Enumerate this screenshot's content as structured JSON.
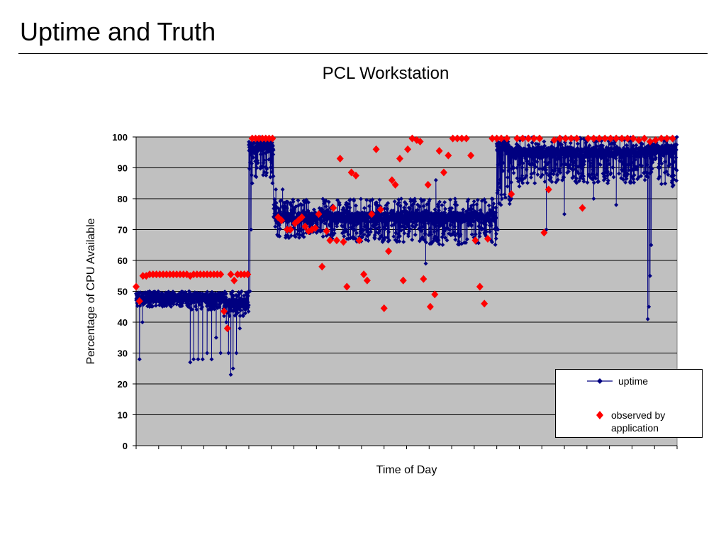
{
  "slide": {
    "title": "Uptime and Truth"
  },
  "chart_data": {
    "type": "scatter",
    "title": "PCL Workstation",
    "xlabel": "Time of Day",
    "ylabel": "Percentage of CPU Available",
    "ylim": [
      0,
      100
    ],
    "yticks": [
      0,
      10,
      20,
      30,
      40,
      50,
      60,
      70,
      80,
      90,
      100
    ],
    "xlim": [
      0,
      24
    ],
    "xtick_count": 24,
    "grid": "horizontal",
    "legend_position": "bottom-right",
    "plot_background": "#c0c0c0",
    "series": [
      {
        "name": "uptime",
        "color": "#000080",
        "marker": "diamond-line",
        "segments": [
          {
            "x0": 0.0,
            "x1": 2.4,
            "base": 48,
            "band": [
              45,
              50
            ],
            "spikes": [
              [
                0.15,
                28
              ],
              [
                0.28,
                40
              ],
              [
                0.6,
                45
              ]
            ]
          },
          {
            "x0": 2.4,
            "x1": 4.0,
            "base": 48,
            "band": [
              44,
              50
            ],
            "spikes": [
              [
                2.4,
                27
              ],
              [
                2.55,
                28
              ],
              [
                2.75,
                28
              ],
              [
                2.95,
                28
              ],
              [
                3.15,
                30
              ],
              [
                3.35,
                28
              ],
              [
                3.55,
                35
              ],
              [
                3.75,
                30
              ],
              [
                3.9,
                42
              ]
            ]
          },
          {
            "x0": 4.0,
            "x1": 5.0,
            "base": 46,
            "band": [
              42,
              50
            ],
            "spikes": [
              [
                4.0,
                40
              ],
              [
                4.1,
                30
              ],
              [
                4.2,
                23
              ],
              [
                4.3,
                25
              ],
              [
                4.45,
                30
              ],
              [
                4.6,
                38
              ]
            ]
          },
          {
            "x0": 5.0,
            "x1": 6.1,
            "base": 97,
            "band": [
              85,
              100
            ],
            "spikes": [
              [
                5.05,
                50
              ],
              [
                5.1,
                70
              ],
              [
                5.15,
                85
              ]
            ]
          },
          {
            "x0": 6.1,
            "x1": 9.5,
            "base": 74,
            "band": [
              67,
              80
            ],
            "spikes": [
              [
                6.2,
                83
              ],
              [
                6.5,
                83
              ]
            ]
          },
          {
            "x0": 9.5,
            "x1": 12.8,
            "base": 74,
            "band": [
              66,
              80
            ],
            "spikes": [
              [
                12.85,
                59
              ]
            ]
          },
          {
            "x0": 12.8,
            "x1": 16.0,
            "base": 74,
            "band": [
              65,
              80
            ],
            "spikes": [
              [
                13.3,
                86
              ]
            ]
          },
          {
            "x0": 16.0,
            "x1": 16.6,
            "base": 97,
            "band": [
              78,
              100
            ],
            "spikes": [
              [
                16.05,
                70
              ],
              [
                16.1,
                85
              ]
            ]
          },
          {
            "x0": 16.6,
            "x1": 22.6,
            "base": 95,
            "band": [
              85,
              100
            ],
            "spikes": [
              [
                16.65,
                80
              ],
              [
                17.0,
                84
              ],
              [
                18.2,
                70
              ],
              [
                19.0,
                75
              ],
              [
                20.3,
                80
              ],
              [
                21.3,
                78
              ]
            ]
          },
          {
            "x0": 22.6,
            "x1": 23.2,
            "base": 96,
            "band": [
              86,
              100
            ],
            "spikes": [
              [
                22.7,
                41
              ],
              [
                22.75,
                45
              ],
              [
                22.8,
                55
              ],
              [
                22.85,
                65
              ]
            ]
          },
          {
            "x0": 23.2,
            "x1": 24.0,
            "base": 96,
            "band": [
              84,
              100
            ],
            "spikes": [
              [
                23.8,
                84
              ]
            ]
          }
        ]
      },
      {
        "name": "observed by application",
        "color": "#ff0000",
        "marker": "diamond",
        "points": [
          [
            0.0,
            51.5
          ],
          [
            0.15,
            46.8
          ],
          [
            0.3,
            55
          ],
          [
            0.45,
            55
          ],
          [
            0.6,
            55.5
          ],
          [
            0.75,
            55.5
          ],
          [
            0.9,
            55.5
          ],
          [
            1.05,
            55.5
          ],
          [
            1.2,
            55.5
          ],
          [
            1.35,
            55.5
          ],
          [
            1.5,
            55.5
          ],
          [
            1.65,
            55.5
          ],
          [
            1.8,
            55.5
          ],
          [
            1.95,
            55.5
          ],
          [
            2.1,
            55.5
          ],
          [
            2.25,
            55.5
          ],
          [
            2.4,
            55
          ],
          [
            2.55,
            55.5
          ],
          [
            2.7,
            55.5
          ],
          [
            2.85,
            55.5
          ],
          [
            3.0,
            55.5
          ],
          [
            3.15,
            55.5
          ],
          [
            3.3,
            55.5
          ],
          [
            3.45,
            55.5
          ],
          [
            3.6,
            55.5
          ],
          [
            3.75,
            55.5
          ],
          [
            3.9,
            43.5
          ],
          [
            4.05,
            38
          ],
          [
            4.2,
            55.5
          ],
          [
            4.35,
            53.5
          ],
          [
            4.5,
            55.5
          ],
          [
            4.65,
            55.5
          ],
          [
            4.8,
            55.5
          ],
          [
            4.95,
            55.5
          ],
          [
            5.15,
            99.5
          ],
          [
            5.3,
            99.5
          ],
          [
            5.45,
            99.5
          ],
          [
            5.6,
            99.5
          ],
          [
            5.75,
            99.5
          ],
          [
            5.9,
            99.5
          ],
          [
            6.05,
            99.5
          ],
          [
            6.3,
            74
          ],
          [
            6.45,
            73
          ],
          [
            6.7,
            70
          ],
          [
            6.85,
            70
          ],
          [
            7.05,
            72
          ],
          [
            7.2,
            73
          ],
          [
            7.35,
            74
          ],
          [
            7.5,
            71
          ],
          [
            7.65,
            69.5
          ],
          [
            7.8,
            70
          ],
          [
            7.95,
            70.5
          ],
          [
            8.1,
            75
          ],
          [
            8.25,
            58
          ],
          [
            8.45,
            69.5
          ],
          [
            8.6,
            66.5
          ],
          [
            8.75,
            77
          ],
          [
            8.9,
            66.5
          ],
          [
            9.05,
            93
          ],
          [
            9.2,
            66
          ],
          [
            9.35,
            51.5
          ],
          [
            9.55,
            88.5
          ],
          [
            9.75,
            87.5
          ],
          [
            9.9,
            66.5
          ],
          [
            10.1,
            55.5
          ],
          [
            10.25,
            53.5
          ],
          [
            10.45,
            75
          ],
          [
            10.65,
            96
          ],
          [
            10.85,
            76.5
          ],
          [
            11.0,
            44.5
          ],
          [
            11.2,
            63
          ],
          [
            11.35,
            86
          ],
          [
            11.5,
            84.5
          ],
          [
            11.7,
            93
          ],
          [
            11.85,
            53.5
          ],
          [
            12.05,
            96
          ],
          [
            12.25,
            99.5
          ],
          [
            12.45,
            99
          ],
          [
            12.6,
            98.5
          ],
          [
            12.75,
            54
          ],
          [
            12.95,
            84.5
          ],
          [
            13.05,
            45
          ],
          [
            13.25,
            49
          ],
          [
            13.45,
            95.5
          ],
          [
            13.65,
            88.5
          ],
          [
            13.85,
            94
          ],
          [
            14.05,
            99.5
          ],
          [
            14.25,
            99.5
          ],
          [
            14.45,
            99.5
          ],
          [
            14.65,
            99.5
          ],
          [
            14.85,
            94
          ],
          [
            15.05,
            66.5
          ],
          [
            15.25,
            51.5
          ],
          [
            15.45,
            46
          ],
          [
            15.6,
            67
          ],
          [
            15.8,
            99.5
          ],
          [
            16.0,
            99.5
          ],
          [
            16.2,
            99.5
          ],
          [
            16.45,
            99.5
          ],
          [
            16.65,
            81.5
          ],
          [
            16.9,
            99.5
          ],
          [
            17.15,
            99.5
          ],
          [
            17.4,
            99.5
          ],
          [
            17.65,
            99.5
          ],
          [
            17.9,
            99.5
          ],
          [
            18.1,
            69
          ],
          [
            18.3,
            83
          ],
          [
            18.55,
            99
          ],
          [
            18.8,
            99.5
          ],
          [
            19.05,
            99.5
          ],
          [
            19.3,
            99.5
          ],
          [
            19.55,
            99.5
          ],
          [
            19.8,
            77
          ],
          [
            20.05,
            99.5
          ],
          [
            20.3,
            99.5
          ],
          [
            20.55,
            99.5
          ],
          [
            20.8,
            99.5
          ],
          [
            21.05,
            99.5
          ],
          [
            21.3,
            99.5
          ],
          [
            21.55,
            99.5
          ],
          [
            21.8,
            99.5
          ],
          [
            22.05,
            99.5
          ],
          [
            22.3,
            99
          ],
          [
            22.55,
            99.5
          ],
          [
            22.8,
            98.5
          ],
          [
            23.05,
            99
          ],
          [
            23.3,
            99.5
          ],
          [
            23.55,
            99.5
          ],
          [
            23.8,
            99.5
          ]
        ]
      }
    ]
  }
}
